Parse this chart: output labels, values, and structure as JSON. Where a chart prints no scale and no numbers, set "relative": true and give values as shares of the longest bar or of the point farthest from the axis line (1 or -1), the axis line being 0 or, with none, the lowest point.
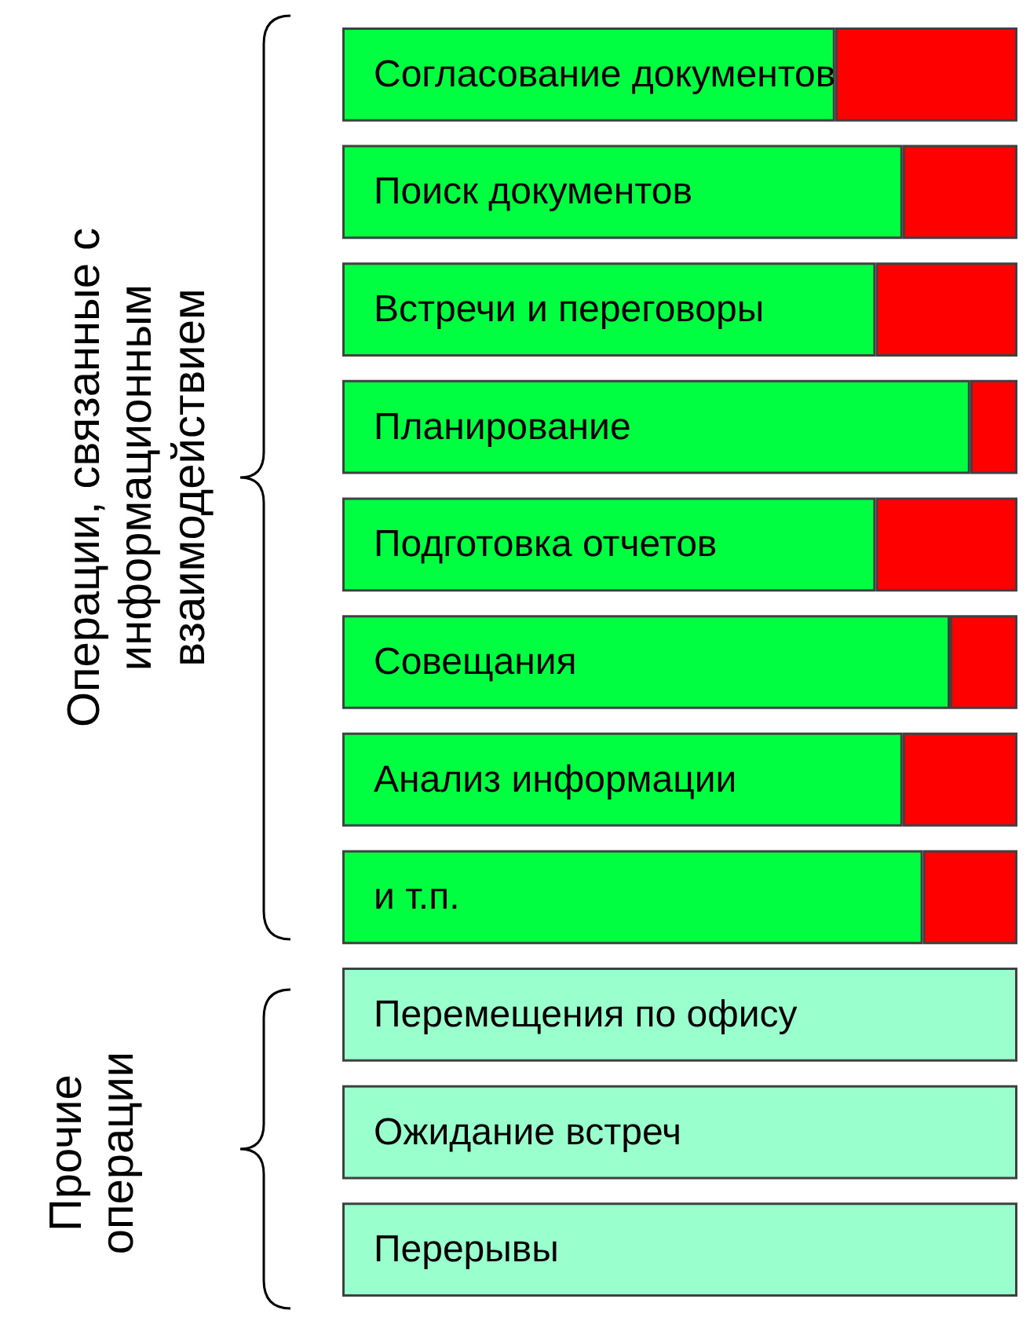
{
  "chart_data": {
    "type": "bar",
    "orientation": "horizontal",
    "stacked": true,
    "relative": true,
    "categories": [
      "Согласование документов",
      "Поиск документов",
      "Встречи и переговоры",
      "Планирование",
      "Подготовка отчетов",
      "Совещания",
      "Анализ информации",
      "и т.п.",
      "Перемещения по офису",
      "Ожидание встреч",
      "Перерывы"
    ],
    "series": [
      {
        "color": "#00ff40",
        "values": [
          0.73,
          0.83,
          0.79,
          0.93,
          0.79,
          0.9,
          0.83,
          0.86,
          null,
          null,
          null
        ]
      },
      {
        "color": "#ff0000",
        "values": [
          0.27,
          0.17,
          0.21,
          0.07,
          0.21,
          0.1,
          0.17,
          0.14,
          null,
          null,
          null
        ]
      },
      {
        "color": "#99ffcc",
        "values": [
          null,
          null,
          null,
          null,
          null,
          null,
          null,
          null,
          1,
          1,
          1
        ]
      }
    ],
    "annotations": [
      "Операции, связанные с\nинформационным\nвзаимодействием",
      "Прочие\nоперации"
    ]
  }
}
